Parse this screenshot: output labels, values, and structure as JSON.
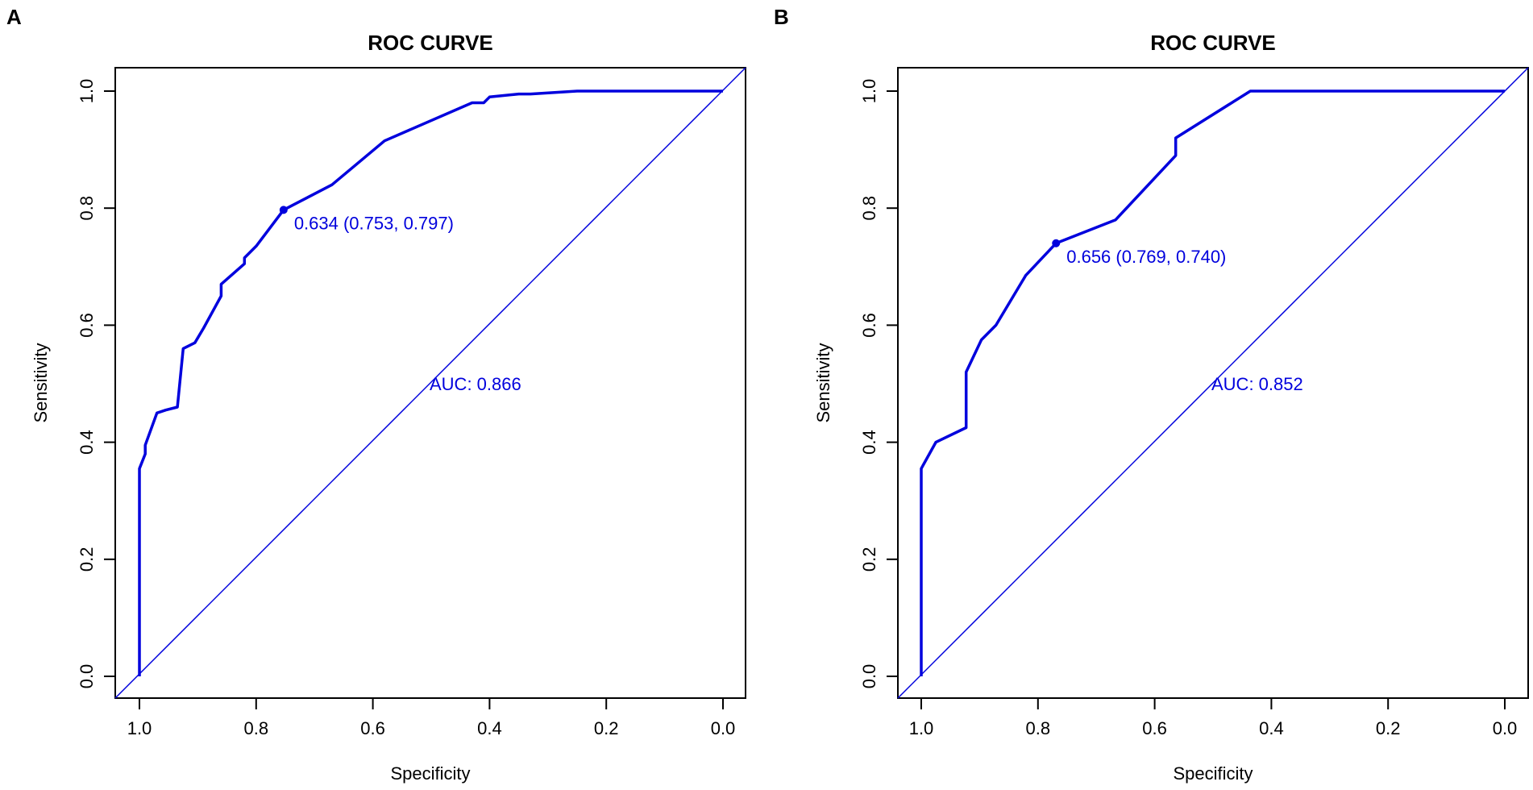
{
  "chart_data": [
    {
      "type": "line",
      "panel": "A",
      "title": "ROC CURVE",
      "xlabel": "Specificity",
      "ylabel": "Sensitivity",
      "xlim": [
        1.0,
        0.0
      ],
      "ylim": [
        0.0,
        1.0
      ],
      "x_ticks": [
        1.0,
        0.8,
        0.6,
        0.4,
        0.2,
        0.0
      ],
      "x_tick_labels": [
        "1.0",
        "0.8",
        "0.6",
        "0.4",
        "0.2",
        "0.0"
      ],
      "y_ticks": [
        0.0,
        0.2,
        0.4,
        0.6,
        0.8,
        1.0
      ],
      "y_tick_labels": [
        "0.0",
        "0.2",
        "0.4",
        "0.6",
        "0.8",
        "1.0"
      ],
      "line_color": "#0000dd",
      "series": [
        {
          "name": "ROC",
          "specificity": [
            1.0,
            1.0,
            0.99,
            0.99,
            0.97,
            0.955,
            0.935,
            0.925,
            0.905,
            0.89,
            0.86,
            0.86,
            0.82,
            0.82,
            0.8,
            0.753,
            0.67,
            0.58,
            0.43,
            0.41,
            0.4,
            0.35,
            0.33,
            0.25,
            0.0
          ],
          "sensitivity": [
            0.0,
            0.355,
            0.38,
            0.395,
            0.45,
            0.455,
            0.46,
            0.56,
            0.57,
            0.595,
            0.65,
            0.67,
            0.705,
            0.715,
            0.735,
            0.797,
            0.84,
            0.915,
            0.98,
            0.98,
            0.99,
            0.995,
            0.995,
            1.0,
            1.0
          ]
        }
      ],
      "reference_line": {
        "from": [
          1.0,
          0.0
        ],
        "to": [
          0.0,
          1.0
        ]
      },
      "threshold_point": {
        "specificity": 0.753,
        "sensitivity": 0.797,
        "label": "0.634 (0.753, 0.797)"
      },
      "auc_label": "AUC: 0.866",
      "auc_label_pos": {
        "specificity": 0.5,
        "sensitivity": 0.5
      }
    },
    {
      "type": "line",
      "panel": "B",
      "title": "ROC CURVE",
      "xlabel": "Specificity",
      "ylabel": "Sensitivity",
      "xlim": [
        1.0,
        0.0
      ],
      "ylim": [
        0.0,
        1.0
      ],
      "x_ticks": [
        1.0,
        0.8,
        0.6,
        0.4,
        0.2,
        0.0
      ],
      "x_tick_labels": [
        "1.0",
        "0.8",
        "0.6",
        "0.4",
        "0.2",
        "0.0"
      ],
      "y_ticks": [
        0.0,
        0.2,
        0.4,
        0.6,
        0.8,
        1.0
      ],
      "y_tick_labels": [
        "0.0",
        "0.2",
        "0.4",
        "0.6",
        "0.8",
        "1.0"
      ],
      "line_color": "#0000dd",
      "series": [
        {
          "name": "ROC",
          "specificity": [
            1.0,
            1.0,
            0.975,
            0.923,
            0.923,
            0.897,
            0.872,
            0.821,
            0.769,
            0.667,
            0.564,
            0.564,
            0.436,
            0.0
          ],
          "sensitivity": [
            0.0,
            0.355,
            0.4,
            0.425,
            0.52,
            0.575,
            0.6,
            0.685,
            0.74,
            0.78,
            0.89,
            0.92,
            1.0,
            1.0
          ]
        }
      ],
      "reference_line": {
        "from": [
          1.0,
          0.0
        ],
        "to": [
          0.0,
          1.0
        ]
      },
      "threshold_point": {
        "specificity": 0.769,
        "sensitivity": 0.74,
        "label": "0.656 (0.769, 0.740)"
      },
      "auc_label": "AUC: 0.852",
      "auc_label_pos": {
        "specificity": 0.5,
        "sensitivity": 0.5
      }
    }
  ]
}
